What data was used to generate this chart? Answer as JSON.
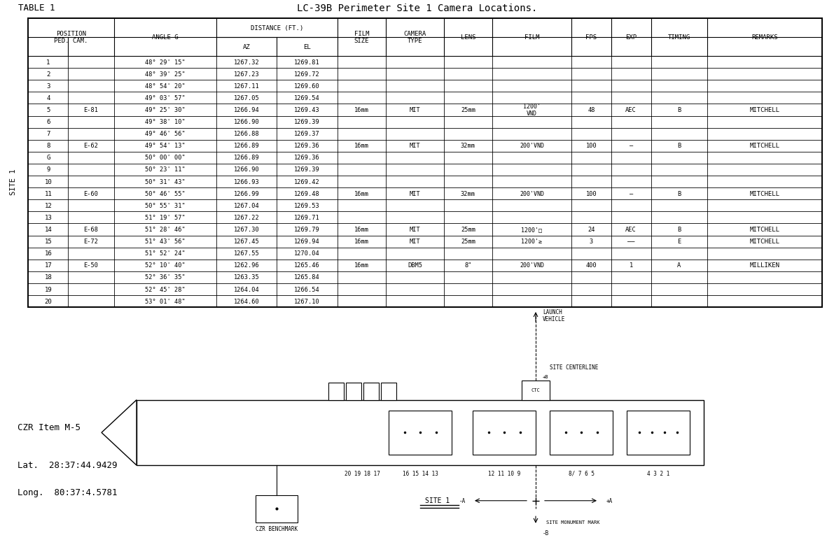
{
  "title": "LC-39B Perimeter Site 1 Camera Locations.",
  "table_label": "TABLE 1",
  "rows": [
    [
      "1",
      "",
      "48° 29' 15\"",
      "1267.32",
      "1269.81",
      "",
      "",
      "",
      "",
      "",
      "",
      "",
      ""
    ],
    [
      "2",
      "",
      "48° 39' 25\"",
      "1267.23",
      "1269.72",
      "",
      "",
      "",
      "",
      "",
      "",
      "",
      ""
    ],
    [
      "3",
      "",
      "48° 54' 20\"",
      "1267.11",
      "1269.60",
      "",
      "",
      "",
      "",
      "",
      "",
      "",
      ""
    ],
    [
      "4",
      "",
      "49° 03' 57\"",
      "1267.05",
      "1269.54",
      "",
      "",
      "",
      "",
      "",
      "",
      "",
      ""
    ],
    [
      "5",
      "E-81",
      "49° 25' 30\"",
      "1266.94",
      "1269.43",
      "16mm",
      "MIT",
      "25mm",
      "1200'\nVND",
      "48",
      "AEC",
      "B",
      "MITCHELL"
    ],
    [
      "6",
      "",
      "49° 38' 10\"",
      "1266.90",
      "1269.39",
      "",
      "",
      "",
      "",
      "",
      "",
      "",
      ""
    ],
    [
      "7",
      "",
      "49° 46' 56\"",
      "1266.88",
      "1269.37",
      "",
      "",
      "",
      "",
      "",
      "",
      "",
      ""
    ],
    [
      "8",
      "E-62",
      "49° 54' 13\"",
      "1266.89",
      "1269.36",
      "16mm",
      "MIT",
      "32mm",
      "200'VND",
      "100",
      "—",
      "B",
      "MITCHELL"
    ],
    [
      "G",
      "",
      "50° 00' 00\"",
      "1266.89",
      "1269.36",
      "",
      "",
      "",
      "",
      "",
      "",
      "",
      ""
    ],
    [
      "9",
      "",
      "50° 23' 11\"",
      "1266.90",
      "1269.39",
      "",
      "",
      "",
      "",
      "",
      "",
      "",
      ""
    ],
    [
      "10",
      "",
      "50° 31' 43\"",
      "1266.93",
      "1269.42",
      "",
      "",
      "",
      "",
      "",
      "",
      "",
      ""
    ],
    [
      "11",
      "E-60",
      "50° 46' 55\"",
      "1266.99",
      "1269.48",
      "16mm",
      "MIT",
      "32mm",
      "200'VND",
      "100",
      "—",
      "B",
      "MITCHELL"
    ],
    [
      "12",
      "",
      "50° 55' 31\"",
      "1267.04",
      "1269.53",
      "",
      "",
      "",
      "",
      "",
      "",
      "",
      ""
    ],
    [
      "13",
      "",
      "51° 19' 57\"",
      "1267.22",
      "1269.71",
      "",
      "",
      "",
      "",
      "",
      "",
      "",
      ""
    ],
    [
      "14",
      "E-68",
      "51° 28' 46\"",
      "1267.30",
      "1269.79",
      "16mm",
      "MIT",
      "25mm",
      "1200'□",
      "24",
      "AEC",
      "B",
      "MITCHELL"
    ],
    [
      "15",
      "E-72",
      "51° 43' 56\"",
      "1267.45",
      "1269.94",
      "16mm",
      "MIT",
      "25mm",
      "1200'≥",
      "3",
      "——",
      "E",
      "MITCHELL"
    ],
    [
      "16",
      "",
      "51° 52' 24\"",
      "1267.55",
      "1270.04",
      "",
      "",
      "",
      "",
      "",
      "",
      "",
      ""
    ],
    [
      "17",
      "E-50",
      "52° 10' 40\"",
      "1262.96",
      "1265.46",
      "16mm",
      "DBM5",
      "8\"",
      "200'VND",
      "400",
      "1",
      "A",
      "MILLIKEN"
    ],
    [
      "18",
      "",
      "52° 36' 35\"",
      "1263.35",
      "1265.84",
      "",
      "",
      "",
      "",
      "",
      "",
      "",
      ""
    ],
    [
      "19",
      "",
      "52° 45' 28\"",
      "1264.04",
      "1266.54",
      "",
      "",
      "",
      "",
      "",
      "",
      "",
      ""
    ],
    [
      "20",
      "",
      "53° 01' 48\"",
      "1264.60",
      "1267.10",
      "",
      "",
      "",
      "",
      "",
      "",
      "",
      ""
    ]
  ],
  "czr_item": "CZR Item M-5",
  "lat": "Lat.  28:37:44.9429",
  "long": "Long.  80:37:4.5781",
  "bg_color": "#ffffff",
  "text_color": "#000000"
}
